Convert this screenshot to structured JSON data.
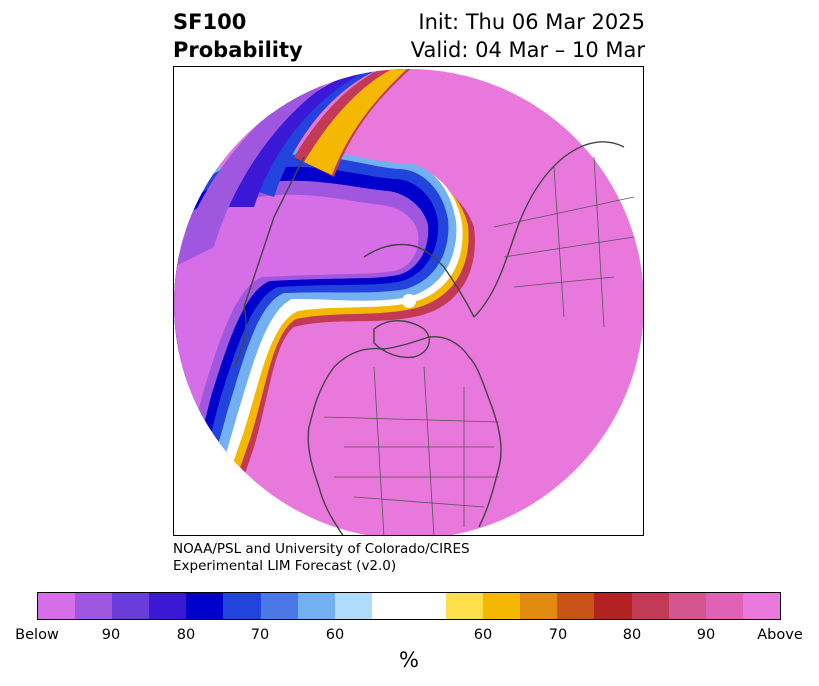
{
  "header": {
    "variable": "SF100",
    "product": "Probability",
    "init": "Init: Thu 06 Mar 2025",
    "valid": "Valid: 04 Mar – 10 Mar"
  },
  "credit": {
    "line1": "NOAA/PSL and University of Colorado/CIRES",
    "line2": "Experimental LIM Forecast (v2.0)"
  },
  "colorbar": {
    "colors": [
      "#d66ee8",
      "#a057e0",
      "#6a3ddb",
      "#3b18d6",
      "#0000cc",
      "#2244dd",
      "#4a78e6",
      "#72b0f2",
      "#aedcfa",
      "#ffffff",
      "#ffffff",
      "#ffe04a",
      "#f5b800",
      "#e08a10",
      "#c85517",
      "#b22222",
      "#c23a55",
      "#d3558f",
      "#df62b7",
      "#e878dc"
    ],
    "ticks": [
      "Below",
      "90",
      "80",
      "70",
      "60",
      "60",
      "70",
      "80",
      "90",
      "Above"
    ],
    "unit": "%"
  },
  "map": {
    "projection_shape": "circle",
    "colors": {
      "above": "#e878dc",
      "below": "#d66ee8",
      "coast": "#444444",
      "pole_dot": "#ffffff"
    }
  }
}
